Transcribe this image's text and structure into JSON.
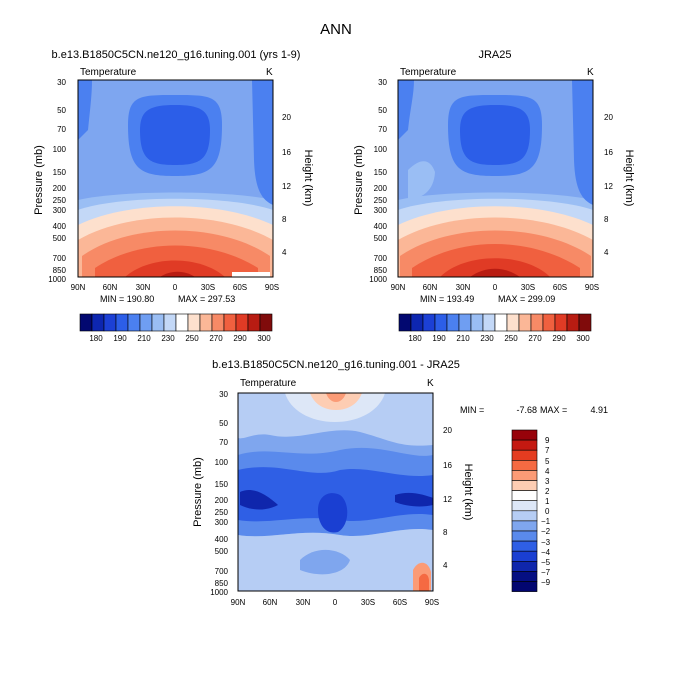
{
  "figure_title": "ANN",
  "chart_data": [
    {
      "type": "contour",
      "title": "b.e13.B1850C5CN.ne120_g16.tuning.001 (yrs 1-9)",
      "field_label": "Temperature",
      "units": "K",
      "xlabel": "",
      "ylabel": "Pressure (mb)",
      "ylabel_right": "Height (km)",
      "x_ticks": [
        "90N",
        "60N",
        "30N",
        "0",
        "30S",
        "60S",
        "90S"
      ],
      "y_ticks": [
        "30",
        "50",
        "70",
        "100",
        "150",
        "200",
        "250",
        "300",
        "400",
        "500",
        "700",
        "850",
        "1000"
      ],
      "height_ticks": [
        "20",
        "16",
        "12",
        "8",
        "4"
      ],
      "min_label": "MIN = 190.80",
      "max_label": "MAX = 297.53",
      "min": 190.8,
      "max": 297.53,
      "colorbar_levels": [
        "180",
        "190",
        "210",
        "230",
        "250",
        "270",
        "290",
        "300"
      ]
    },
    {
      "type": "contour",
      "title": "JRA25",
      "field_label": "Temperature",
      "units": "K",
      "xlabel": "",
      "ylabel": "Pressure (mb)",
      "ylabel_right": "Height (km)",
      "x_ticks": [
        "90N",
        "60N",
        "30N",
        "0",
        "30S",
        "60S",
        "90S"
      ],
      "y_ticks": [
        "30",
        "50",
        "70",
        "100",
        "150",
        "200",
        "250",
        "300",
        "400",
        "500",
        "700",
        "850",
        "1000"
      ],
      "height_ticks": [
        "20",
        "16",
        "12",
        "8",
        "4"
      ],
      "min_label": "MIN = 193.49",
      "max_label": "MAX = 299.09",
      "min": 193.49,
      "max": 299.09,
      "colorbar_levels": [
        "180",
        "190",
        "210",
        "230",
        "250",
        "270",
        "290",
        "300"
      ]
    },
    {
      "type": "contour",
      "title": "b.e13.B1850C5CN.ne120_g16.tuning.001 - JRA25",
      "field_label": "Temperature",
      "units": "K",
      "xlabel": "",
      "ylabel": "Pressure (mb)",
      "ylabel_right": "Height (km)",
      "x_ticks": [
        "90N",
        "60N",
        "30N",
        "0",
        "30S",
        "60S",
        "90S"
      ],
      "y_ticks": [
        "30",
        "50",
        "70",
        "100",
        "150",
        "200",
        "250",
        "300",
        "400",
        "500",
        "700",
        "850",
        "1000"
      ],
      "height_ticks": [
        "20",
        "16",
        "12",
        "8",
        "4"
      ],
      "min_label": "MIN =",
      "min_value": "-7.68",
      "max_label": "MAX =",
      "max_value": "4.91",
      "min": -7.68,
      "max": 4.91,
      "colorbar_levels": [
        "9",
        "7",
        "5",
        "4",
        "3",
        "2",
        "1",
        "0",
        "−1",
        "−2",
        "−3",
        "−4",
        "−5",
        "−7",
        "−9"
      ]
    }
  ],
  "colors": {
    "temperature_scale": [
      "#020870",
      "#0d26b0",
      "#1c40d5",
      "#2c5ee8",
      "#4b80f0",
      "#6f9ef2",
      "#9abef4",
      "#c3d8f7",
      "#ffffff",
      "#fde0cd",
      "#fbb797",
      "#f78a66",
      "#f0603f",
      "#e03b25",
      "#b81c12",
      "#800b0b"
    ],
    "difference_scale": [
      "#97020a",
      "#c41911",
      "#e43c20",
      "#f56a42",
      "#fb9b76",
      "#fdcdb3",
      "#ffffff",
      "#dde7f7",
      "#b6cdf4",
      "#7fa6ee",
      "#5a8aec",
      "#2f5fe5",
      "#1a3fd2",
      "#0f26ac",
      "#050f82",
      "#020670"
    ]
  }
}
